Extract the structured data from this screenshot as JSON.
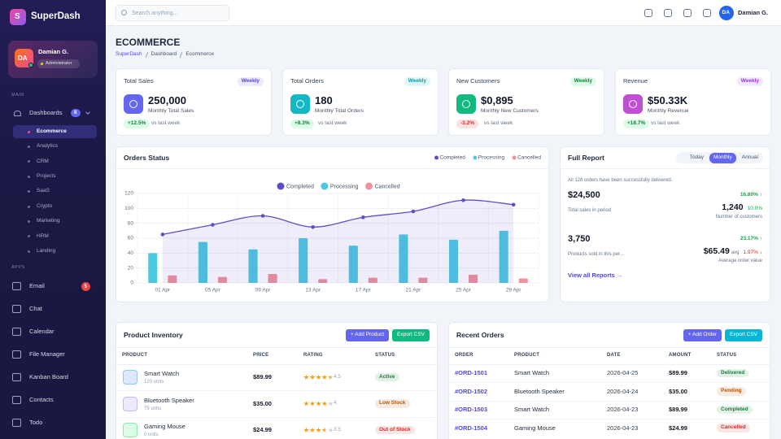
{
  "sidebar": {
    "logo": "S",
    "brand": "SuperDash",
    "user": {
      "initials": "DA",
      "name": "Damian G.",
      "role": "Administrator"
    },
    "main_label": "MAIN",
    "dashboards": {
      "label": "Dashboards",
      "badge": "8",
      "items": [
        "Ecommerce",
        "Analytics",
        "CRM",
        "Projects",
        "SaaS",
        "Crypto",
        "Marketing",
        "HRM",
        "Landing"
      ]
    },
    "apps_label": "APPS",
    "apps": [
      {
        "label": "Email",
        "badge": "5"
      },
      {
        "label": "Chat"
      },
      {
        "label": "Calendar"
      },
      {
        "label": "File Manager"
      },
      {
        "label": "Kanban Board"
      },
      {
        "label": "Contacts"
      },
      {
        "label": "Todo"
      }
    ]
  },
  "topbar": {
    "search_placeholder": "Search anything...",
    "user": {
      "initials": "DA",
      "name": "Damian G."
    }
  },
  "header": {
    "title": "ECOMMERCE",
    "breadcrumb": [
      "SuperDash",
      "Dashboard",
      "Ecommerce"
    ]
  },
  "stats": [
    {
      "title": "Total Sales",
      "period": "Weekly",
      "value": "250,000",
      "subtitle": "Monthly Total Sales",
      "change": "+12.5%",
      "note": "vs last week"
    },
    {
      "title": "Total Orders",
      "period": "Weekly",
      "value": "180",
      "subtitle": "Monthly Total Orders",
      "change": "+8.3%",
      "note": "vs last week"
    },
    {
      "title": "New Customers",
      "period": "Weekly",
      "value": "$0,895",
      "subtitle": "Monthly New Customers",
      "change": "-3.2%",
      "note": "vs last week"
    },
    {
      "title": "Revenue",
      "period": "Weekly",
      "value": "$50.33K",
      "subtitle": "Monthly Revenue",
      "change": "+18.7%",
      "note": "vs last week"
    }
  ],
  "chart_data": {
    "type": "combo",
    "title": "Orders Status",
    "categories": [
      "01 Apr",
      "05 Apr",
      "09 Apr",
      "13 Apr",
      "17 Apr",
      "21 Apr",
      "25 Apr",
      "29 Apr"
    ],
    "series": [
      {
        "name": "Completed",
        "kind": "line",
        "color": "#5b4fc7",
        "values": [
          65,
          78,
          90,
          75,
          88,
          96,
          111,
          105
        ]
      },
      {
        "name": "Processing",
        "kind": "bar",
        "color": "#4cc9e0",
        "values": [
          40,
          55,
          45,
          60,
          50,
          65,
          58,
          70
        ]
      },
      {
        "name": "Cancelled",
        "kind": "bar",
        "color": "#f0919b",
        "values": [
          10,
          8,
          12,
          5,
          7,
          7,
          11,
          6
        ]
      }
    ],
    "ylim": [
      0,
      120
    ],
    "yticks": [
      0,
      20,
      40,
      60,
      80,
      100,
      120
    ],
    "grid": true
  },
  "full_report": {
    "title": "Full Report",
    "tabs": [
      "Today",
      "Monthly",
      "Annual"
    ],
    "active_tab": 1,
    "note": "All 128 orders have been successfully delivered.",
    "metrics": [
      {
        "value": "$24,500",
        "change": "16.80% ↑",
        "label": "Total sales in period",
        "side_value": "1,240",
        "side_change": "10.0%",
        "side_label": "Number of customers"
      },
      {
        "value": "3,750",
        "change": "23.17% ↑",
        "label": "Products sold in this per...",
        "side_value": "$65.49",
        "side_unit": "avg",
        "side_change": "1.97% ↓",
        "side_label": "Average order value"
      }
    ],
    "link": "View all Reports →"
  },
  "inventory": {
    "title": "Product Inventory",
    "actions": [
      "+ Add Product",
      "Export CSV"
    ],
    "columns": [
      "PRODUCT",
      "PRICE",
      "RATING",
      "STATUS"
    ],
    "rows": [
      {
        "name": "Smart Watch",
        "units": "120 units",
        "price": "$89.99",
        "rating": 4.5,
        "status": "Active",
        "status_color": "#15803d"
      },
      {
        "name": "Bluetooth Speaker",
        "units": "75 units",
        "price": "$35.00",
        "rating": 4.0,
        "status": "Low Stock",
        "status_color": "#b45309"
      },
      {
        "name": "Gaming Mouse",
        "units": "0 units",
        "price": "$24.99",
        "rating": 3.5,
        "status": "Out of Stock",
        "status_color": "#dc2626"
      }
    ]
  },
  "recent_orders": {
    "title": "Recent Orders",
    "actions": [
      "+ Add Order",
      "Export CSV"
    ],
    "columns": [
      "ORDER",
      "PRODUCT",
      "DATE",
      "AMOUNT",
      "STATUS"
    ],
    "rows": [
      {
        "id": "#ORD-1501",
        "product": "Smart Watch",
        "date": "2026-04-25",
        "amount": "$89.99",
        "status": "Delivered",
        "status_color": "#15803d"
      },
      {
        "id": "#ORD-1502",
        "product": "Bluetooth Speaker",
        "date": "2026-04-24",
        "amount": "$35.00",
        "status": "Pending",
        "status_color": "#b45309"
      },
      {
        "id": "#ORD-1503",
        "product": "Smart Watch",
        "date": "2026-04-23",
        "amount": "$89.99",
        "status": "Completed",
        "status_color": "#15803d"
      },
      {
        "id": "#ORD-1504",
        "product": "Gaming Mouse",
        "date": "2026-04-23",
        "amount": "$24.99",
        "status": "Cancelled",
        "status_color": "#dc2626"
      }
    ]
  }
}
